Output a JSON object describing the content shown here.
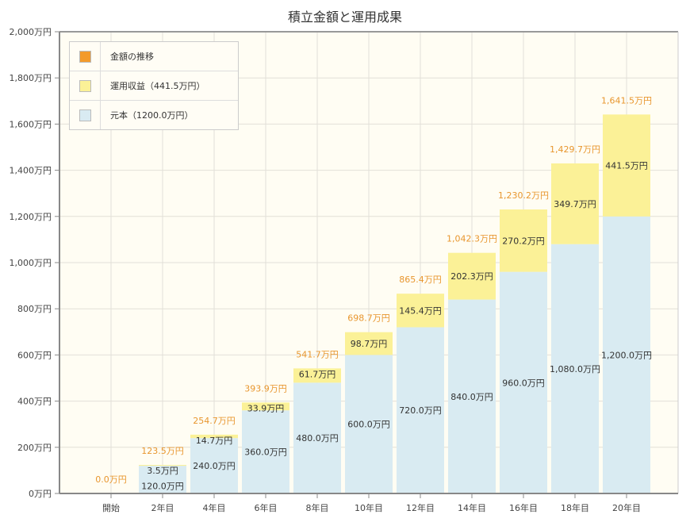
{
  "chart_data": {
    "type": "bar",
    "stacked": true,
    "title": "積立金額と運用成果",
    "categories": [
      "開始",
      "2年目",
      "4年目",
      "6年目",
      "8年目",
      "10年目",
      "12年目",
      "14年目",
      "16年目",
      "18年目",
      "20年目"
    ],
    "series": [
      {
        "name": "元本（1200.0万円）",
        "color": "#d9ebf2",
        "values": [
          0,
          120.0,
          240.0,
          360.0,
          480.0,
          600.0,
          720.0,
          840.0,
          960.0,
          1080.0,
          1200.0
        ]
      },
      {
        "name": "運用収益（441.5万円）",
        "color": "#fbf197",
        "values": [
          0,
          3.5,
          14.7,
          33.9,
          61.7,
          98.7,
          145.4,
          202.3,
          270.2,
          349.7,
          441.5
        ]
      }
    ],
    "totals": {
      "name": "金額の推移",
      "color": "#f39a2b",
      "values": [
        0.0,
        123.5,
        254.7,
        393.9,
        541.7,
        698.7,
        865.4,
        1042.3,
        1230.2,
        1429.7,
        1641.5
      ]
    },
    "value_suffix": "万円",
    "yticks": [
      "0万円",
      "200万円",
      "400万円",
      "600万円",
      "800万円",
      "1,000万円",
      "1,200万円",
      "1,400万円",
      "1,600万円",
      "1,800万円",
      "2,000万円"
    ],
    "ylim": [
      0,
      2000
    ],
    "grid": true,
    "legend": "top-left"
  }
}
